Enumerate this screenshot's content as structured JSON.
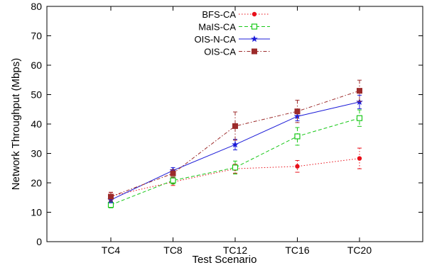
{
  "chart_data": {
    "type": "line",
    "title": "",
    "xlabel": "Test Scenario",
    "ylabel": "Network Throughput (Mbps)",
    "categories": [
      "TC4",
      "TC8",
      "TC12",
      "TC16",
      "TC20"
    ],
    "ylim": [
      0,
      80
    ],
    "yticks": [
      0,
      10,
      20,
      30,
      40,
      50,
      60,
      70,
      80
    ],
    "grid": false,
    "legend_position": "top-center",
    "series": [
      {
        "name": "BFS-CA",
        "color": "#e8101a",
        "line_style": "dotted",
        "marker": "filled-circle",
        "values": [
          15.5,
          20.3,
          24.8,
          25.6,
          28.3
        ],
        "errors": [
          1.2,
          1.2,
          1.5,
          2.0,
          3.5
        ]
      },
      {
        "name": "MaIS-CA",
        "color": "#18c818",
        "line_style": "dashed",
        "marker": "open-square",
        "values": [
          12.5,
          20.8,
          25.2,
          35.8,
          42.0
        ],
        "errors": [
          1.0,
          1.2,
          2.2,
          3.0,
          2.8
        ]
      },
      {
        "name": "OIS-N-CA",
        "color": "#1c1cd8",
        "line_style": "solid",
        "marker": "star",
        "values": [
          14.2,
          24.2,
          33.0,
          42.6,
          47.5
        ],
        "errors": [
          1.0,
          1.0,
          1.8,
          1.5,
          2.3
        ]
      },
      {
        "name": "OIS-CA",
        "color": "#9c2b2b",
        "line_style": "dash-dot",
        "marker": "filled-square",
        "values": [
          15.3,
          23.2,
          39.3,
          44.3,
          51.3
        ],
        "errors": [
          1.5,
          1.3,
          4.8,
          3.8,
          3.6
        ]
      }
    ]
  }
}
